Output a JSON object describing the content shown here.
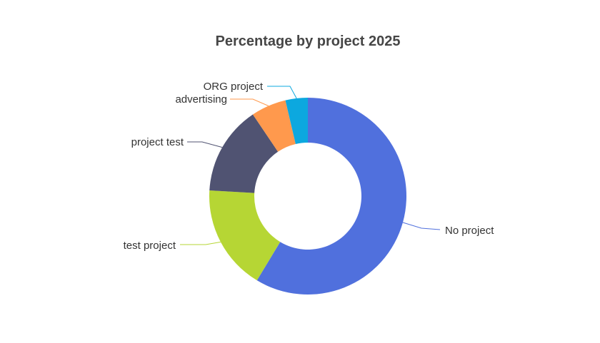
{
  "chart_data": {
    "type": "pie",
    "variant": "donut",
    "title": "Percentage by project 2025",
    "slices": [
      {
        "label": "No project",
        "value": 56.0,
        "color": "#5070dd"
      },
      {
        "label": "test project",
        "value": 16.5,
        "color": "#b6d634"
      },
      {
        "label": "project test",
        "value": 14.0,
        "color": "#505372"
      },
      {
        "label": "advertising",
        "value": 5.5,
        "color": "#ff994d"
      },
      {
        "label": "ORG project",
        "value": 3.5,
        "color": "#0ca8df"
      }
    ],
    "legend": "none",
    "labels": "outside-with-leader-lines"
  }
}
